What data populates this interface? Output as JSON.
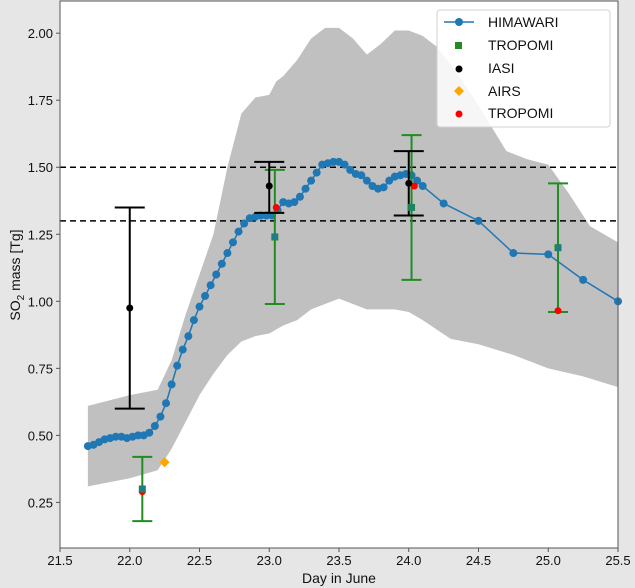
{
  "chart_data": {
    "type": "line",
    "xlabel": "Day in June",
    "ylabel_main": "SO",
    "ylabel_sub": "2",
    "ylabel_rest": " mass [Tg]",
    "xlim": [
      21.5,
      25.5
    ],
    "ylim": [
      0.08,
      2.12
    ],
    "xticks": [
      "21.5",
      "22.0",
      "22.5",
      "23.0",
      "23.5",
      "24.0",
      "24.5",
      "25.0",
      "25.5"
    ],
    "yticks": [
      "0.25",
      "0.50",
      "0.75",
      "1.00",
      "1.25",
      "1.50",
      "1.75",
      "2.00"
    ],
    "hlines": [
      1.5,
      1.3
    ],
    "legend": {
      "placement": "top-right",
      "entries": [
        "HIMAWARI",
        "TROPOMI",
        "IASI",
        "AIRS",
        "TROPOMI"
      ]
    },
    "colors": {
      "himawari": "#1f77b4",
      "tropomi_sq": "#228b22",
      "iasi": "#000000",
      "airs": "#ffa500",
      "tropomi_red": "#ff0000",
      "band": "#c0c0c0"
    },
    "himawari": {
      "x": [
        21.7,
        21.74,
        21.78,
        21.82,
        21.86,
        21.9,
        21.94,
        21.98,
        22.02,
        22.06,
        22.1,
        22.14,
        22.18,
        22.22,
        22.26,
        22.3,
        22.34,
        22.38,
        22.42,
        22.46,
        22.5,
        22.54,
        22.58,
        22.62,
        22.66,
        22.7,
        22.74,
        22.78,
        22.82,
        22.86,
        22.9,
        22.94,
        22.98,
        23.02,
        23.06,
        23.1,
        23.14,
        23.18,
        23.22,
        23.26,
        23.3,
        23.34,
        23.38,
        23.42,
        23.46,
        23.5,
        23.54,
        23.58,
        23.62,
        23.66,
        23.7,
        23.74,
        23.78,
        23.82,
        23.86,
        23.9,
        23.94,
        23.98,
        24.02,
        24.06,
        24.1,
        24.25,
        24.5,
        24.75,
        25.0,
        25.25,
        25.5
      ],
      "y": [
        0.46,
        0.465,
        0.475,
        0.485,
        0.49,
        0.495,
        0.495,
        0.49,
        0.495,
        0.5,
        0.5,
        0.51,
        0.535,
        0.57,
        0.62,
        0.69,
        0.76,
        0.82,
        0.87,
        0.93,
        0.98,
        1.02,
        1.06,
        1.1,
        1.14,
        1.18,
        1.22,
        1.26,
        1.29,
        1.31,
        1.315,
        1.32,
        1.32,
        1.32,
        1.34,
        1.37,
        1.365,
        1.37,
        1.39,
        1.42,
        1.45,
        1.48,
        1.51,
        1.515,
        1.52,
        1.52,
        1.51,
        1.49,
        1.475,
        1.47,
        1.45,
        1.43,
        1.42,
        1.425,
        1.45,
        1.465,
        1.47,
        1.475,
        1.47,
        1.45,
        1.43,
        1.365,
        1.3,
        1.18,
        1.175,
        1.08,
        1.0
      ]
    },
    "band": {
      "upper_x": [
        21.7,
        22.0,
        22.2,
        22.3,
        22.4,
        22.5,
        22.6,
        22.7,
        22.8,
        22.9,
        23.0,
        23.05,
        23.1,
        23.2,
        23.3,
        23.4,
        23.5,
        23.6,
        23.7,
        23.8,
        23.9,
        24.0,
        24.1,
        24.2,
        24.35,
        24.5,
        24.7,
        24.85,
        25.0,
        25.15,
        25.3,
        25.5
      ],
      "upper_y": [
        0.61,
        0.65,
        0.67,
        0.78,
        0.95,
        1.1,
        1.25,
        1.5,
        1.7,
        1.76,
        1.77,
        1.82,
        1.84,
        1.9,
        1.98,
        2.02,
        2.02,
        1.98,
        1.92,
        1.96,
        2.01,
        2.01,
        1.99,
        1.95,
        1.85,
        1.73,
        1.56,
        1.53,
        1.51,
        1.4,
        1.28,
        1.22
      ],
      "lower_x": [
        21.7,
        22.0,
        22.2,
        22.3,
        22.4,
        22.5,
        22.6,
        22.7,
        22.8,
        22.9,
        23.0,
        23.1,
        23.2,
        23.3,
        23.5,
        23.6,
        23.7,
        23.8,
        23.9,
        24.0,
        24.1,
        24.3,
        24.5,
        24.75,
        25.0,
        25.25,
        25.5
      ],
      "lower_y": [
        0.31,
        0.34,
        0.37,
        0.45,
        0.55,
        0.65,
        0.73,
        0.8,
        0.85,
        0.87,
        0.88,
        0.91,
        0.93,
        0.97,
        1.01,
        0.99,
        0.97,
        0.97,
        0.97,
        0.96,
        0.93,
        0.86,
        0.84,
        0.8,
        0.75,
        0.72,
        0.68
      ]
    },
    "iasi": [
      {
        "x": 22.0,
        "y": 0.975,
        "lo": 0.6,
        "hi": 1.35
      },
      {
        "x": 23.0,
        "y": 1.43,
        "lo": 1.33,
        "hi": 1.52
      },
      {
        "x": 24.0,
        "y": 1.44,
        "lo": 1.32,
        "hi": 1.56
      }
    ],
    "tropomi_square": [
      {
        "x": 22.09,
        "y": 0.3,
        "lo": 0.18,
        "hi": 0.42
      },
      {
        "x": 23.04,
        "y": 1.24,
        "lo": 0.99,
        "hi": 1.49
      },
      {
        "x": 24.02,
        "y": 1.35,
        "lo": 1.08,
        "hi": 1.62
      },
      {
        "x": 25.07,
        "y": 1.2,
        "lo": 0.96,
        "hi": 1.44
      }
    ],
    "tropomi_red": [
      {
        "x": 22.09,
        "y": 0.29
      },
      {
        "x": 23.05,
        "y": 1.35
      },
      {
        "x": 24.04,
        "y": 1.43
      },
      {
        "x": 25.07,
        "y": 0.965
      }
    ],
    "airs": [
      {
        "x": 22.25,
        "y": 0.4
      }
    ]
  }
}
